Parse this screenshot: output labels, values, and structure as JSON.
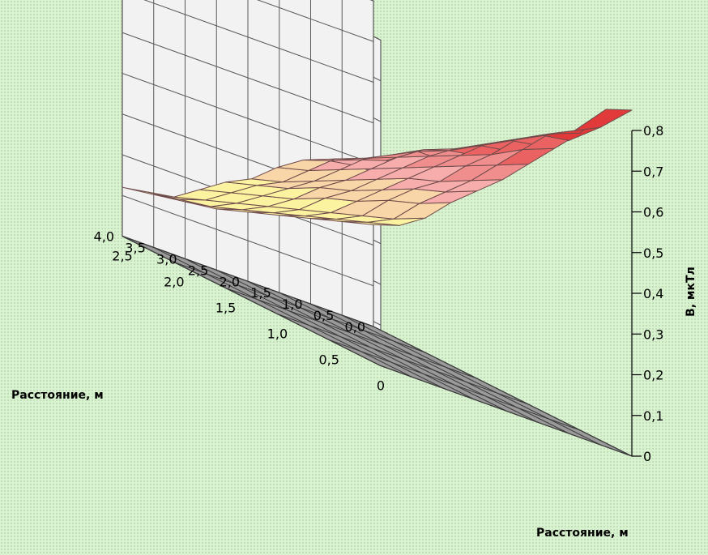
{
  "chart_data": {
    "type": "surface",
    "axes": {
      "x": {
        "label": "Расстояние, м",
        "ticks": [
          "0,0",
          "0,5",
          "1,0",
          "1,5",
          "2,0",
          "2,5",
          "3,0",
          "3,5",
          "4,0"
        ],
        "values": [
          0.0,
          0.5,
          1.0,
          1.5,
          2.0,
          2.5,
          3.0,
          3.5,
          4.0
        ]
      },
      "y": {
        "label": "Расстояние, м",
        "ticks": [
          "0",
          "0,5",
          "1,0",
          "1,5",
          "2,0",
          "2,5"
        ],
        "values": [
          0.0,
          0.5,
          1.0,
          1.5,
          2.0,
          2.5
        ]
      },
      "z": {
        "label": "B, мкТл",
        "ticks": [
          "0",
          "0,1",
          "0,2",
          "0,3",
          "0,4",
          "0,5",
          "0,6",
          "0,7",
          "0,8"
        ],
        "range": [
          0,
          0.8
        ]
      }
    },
    "grid": true,
    "color_bands": [
      {
        "min": 0.0,
        "max": 0.3,
        "color": "#fbf3a0"
      },
      {
        "min": 0.3,
        "max": 0.4,
        "color": "#f9d6a8"
      },
      {
        "min": 0.4,
        "max": 0.5,
        "color": "#f6adac"
      },
      {
        "min": 0.5,
        "max": 0.6,
        "color": "#f08e8e"
      },
      {
        "min": 0.6,
        "max": 0.7,
        "color": "#ea6262"
      },
      {
        "min": 0.7,
        "max": 0.8,
        "color": "#e23a3a"
      }
    ],
    "colors": {
      "wall": "#f2f2f2",
      "floor": "#9a9a9a",
      "gridline": "#5a5a5a",
      "mesh": "#6e4a4a"
    },
    "z_values": [
      [
        0.85,
        0.78,
        0.72,
        0.68,
        0.64,
        0.6,
        0.56,
        0.52,
        0.47
      ],
      [
        0.82,
        0.74,
        0.7,
        0.66,
        0.62,
        0.58,
        0.55,
        0.5,
        0.46
      ],
      [
        0.73,
        0.7,
        0.66,
        0.62,
        0.58,
        0.55,
        0.51,
        0.47,
        0.44
      ],
      [
        0.66,
        0.63,
        0.59,
        0.56,
        0.53,
        0.5,
        0.47,
        0.44,
        0.41
      ],
      [
        0.59,
        0.56,
        0.53,
        0.5,
        0.47,
        0.44,
        0.41,
        0.38,
        0.36
      ],
      [
        0.52,
        0.49,
        0.46,
        0.44,
        0.41,
        0.38,
        0.35,
        0.32,
        0.3
      ],
      [
        0.46,
        0.43,
        0.41,
        0.38,
        0.35,
        0.33,
        0.3,
        0.28,
        0.26
      ],
      [
        0.4,
        0.37,
        0.35,
        0.32,
        0.3,
        0.27,
        0.25,
        0.23,
        0.21
      ],
      [
        0.33,
        0.3,
        0.28,
        0.26,
        0.24,
        0.22,
        0.2,
        0.18,
        0.16
      ],
      [
        0.28,
        0.26,
        0.24,
        0.22,
        0.2,
        0.18,
        0.16,
        0.15,
        0.14
      ],
      [
        0.25,
        0.23,
        0.21,
        0.19,
        0.17,
        0.15,
        0.14,
        0.13,
        0.12
      ]
    ],
    "z_values_y": [
      0.0,
      0.25,
      0.5,
      0.75,
      1.0,
      1.25,
      1.5,
      1.75,
      2.0,
      2.25,
      2.5
    ],
    "z_values_x": [
      0.0,
      0.5,
      1.0,
      1.5,
      2.0,
      2.5,
      3.0,
      3.5,
      4.0
    ]
  }
}
